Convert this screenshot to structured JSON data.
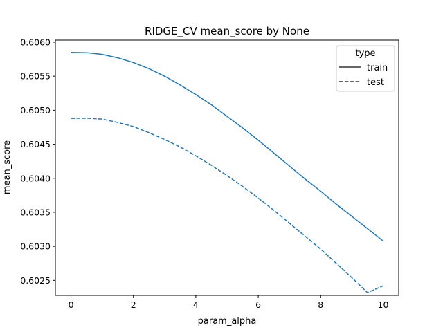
{
  "chart_data": {
    "type": "line",
    "title": "RIDGE_CV mean_score by None",
    "xlabel": "param_alpha",
    "ylabel": "mean_score",
    "xlim": [
      -0.5,
      10.5
    ],
    "ylim": [
      0.60228,
      0.60603
    ],
    "xticks": [
      0,
      2,
      4,
      6,
      8,
      10
    ],
    "yticks": [
      0.6025,
      0.603,
      0.6035,
      0.604,
      0.6045,
      0.605,
      0.6055,
      0.606
    ],
    "ytick_labels": [
      "0.6025",
      "0.6030",
      "0.6035",
      "0.6040",
      "0.6045",
      "0.6050",
      "0.6055",
      "0.6060"
    ],
    "grid": false,
    "legend": {
      "title": "type",
      "location": "top-right",
      "entries": [
        {
          "label": "train",
          "style": "solid"
        },
        {
          "label": "test",
          "style": "dashed"
        }
      ]
    },
    "series": [
      {
        "name": "train",
        "color": "#1f77b4",
        "style": "solid",
        "x": [
          0,
          0.5,
          1,
          1.5,
          2,
          2.5,
          3,
          3.5,
          4,
          4.5,
          5,
          5.5,
          6,
          6.5,
          7,
          7.5,
          8,
          8.5,
          9,
          9.5,
          10
        ],
        "y": [
          0.60585,
          0.605845,
          0.60582,
          0.60577,
          0.6057,
          0.60561,
          0.6055,
          0.60537,
          0.60523,
          0.60508,
          0.60491,
          0.60474,
          0.60456,
          0.60437,
          0.60418,
          0.60399,
          0.60381,
          0.60362,
          0.60344,
          0.60326,
          0.60308
        ]
      },
      {
        "name": "test",
        "color": "#1f77b4",
        "style": "dashed",
        "x": [
          0,
          0.5,
          1,
          1.5,
          2,
          2.5,
          3,
          3.5,
          4,
          4.5,
          5,
          5.5,
          6,
          6.5,
          7,
          7.5,
          8,
          8.5,
          9,
          9.5,
          10
        ],
        "y": [
          0.60488,
          0.604883,
          0.60487,
          0.60482,
          0.60476,
          0.60467,
          0.60457,
          0.60446,
          0.60433,
          0.60419,
          0.60404,
          0.60388,
          0.60371,
          0.60353,
          0.60334,
          0.60315,
          0.60296,
          0.60275,
          0.60254,
          0.60232,
          0.60242
        ]
      }
    ]
  }
}
